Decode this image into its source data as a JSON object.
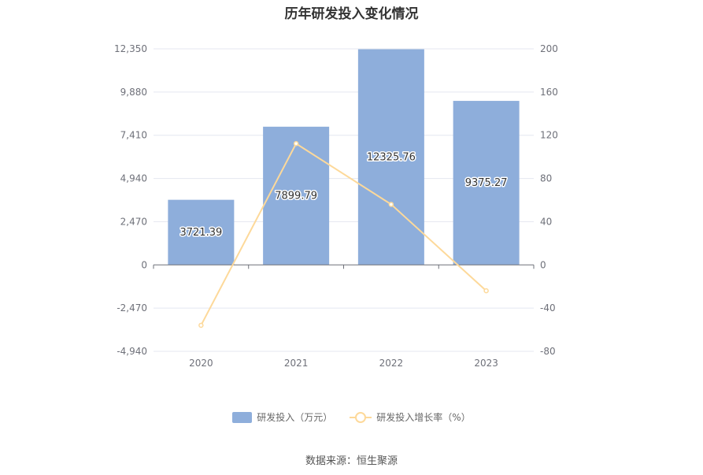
{
  "chart_data": {
    "type": "bar",
    "title": "历年研发投入变化情况",
    "categories": [
      "2020",
      "2021",
      "2022",
      "2023"
    ],
    "series": [
      {
        "name": "研发投入（万元）",
        "type": "bar",
        "axis": "left",
        "values": [
          3721.39,
          7899.79,
          12325.76,
          9375.27
        ],
        "color": "#8eaedb"
      },
      {
        "name": "研发投入增长率（%）",
        "type": "line",
        "axis": "right",
        "values": [
          -55.9,
          112.28,
          56.03,
          -23.94
        ],
        "color": "#fdd99a"
      }
    ],
    "data_labels": [
      "3721.39",
      "7899.79",
      "12325.76",
      "9375.27"
    ],
    "y_left": {
      "ylim": [
        -4940,
        12350
      ],
      "ticks": [
        "-4,940",
        "-2,470",
        "0",
        "2,470",
        "4,940",
        "7,410",
        "9,880",
        "12,350"
      ]
    },
    "y_right": {
      "ylim": [
        -80,
        200
      ],
      "ticks": [
        "-80",
        "-40",
        "0",
        "40",
        "80",
        "120",
        "160",
        "200"
      ]
    },
    "grid": true,
    "legend_position": "bottom"
  },
  "source": "数据来源：恒生聚源"
}
